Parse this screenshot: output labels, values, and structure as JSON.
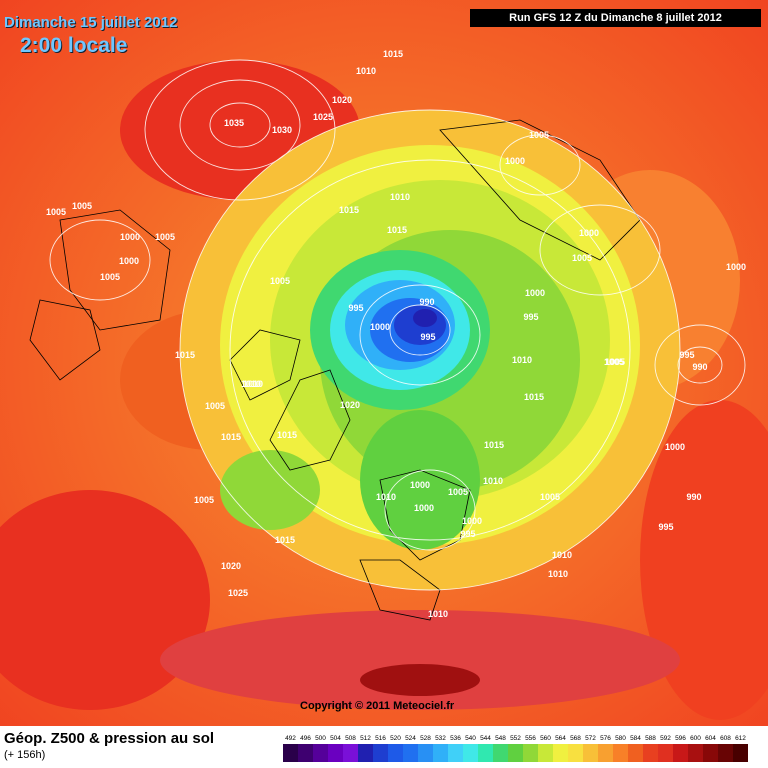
{
  "header": {
    "date": "Dimanche 15 juillet 2012",
    "time": "2:00 locale",
    "run": "Run GFS 12 Z du Dimanche 8 juillet 2012"
  },
  "footer": {
    "title": "Géop. Z500 & pression au sol",
    "lead_time": "(+ 156h)",
    "copyright": "Copyright © 2011 Meteociel.fr"
  },
  "scale": {
    "labels": [
      "492",
      "496",
      "500",
      "504",
      "508",
      "512",
      "516",
      "520",
      "524",
      "528",
      "532",
      "536",
      "540",
      "544",
      "548",
      "552",
      "556",
      "560",
      "564",
      "568",
      "572",
      "576",
      "580",
      "584",
      "588",
      "592",
      "596",
      "600",
      "604",
      "608",
      "612"
    ],
    "colors": [
      "#2a004a",
      "#3e0070",
      "#55009a",
      "#6a00c0",
      "#7a10d8",
      "#2020b0",
      "#1e3ed0",
      "#1e5ae8",
      "#2070f0",
      "#2890f4",
      "#30b0f8",
      "#40d0f8",
      "#40e8e8",
      "#30e8b0",
      "#40d870",
      "#60d040",
      "#90d838",
      "#c8e838",
      "#f0f040",
      "#f8e040",
      "#f8c038",
      "#f8a030",
      "#f88028",
      "#f06020",
      "#e84020",
      "#e03020",
      "#c81818",
      "#a81010",
      "#880808",
      "#680404",
      "#480000"
    ]
  },
  "isobars": [
    {
      "text": "1015"
    },
    {
      "text": "1010"
    },
    {
      "text": "1020"
    },
    {
      "text": "1035"
    },
    {
      "text": "1030"
    },
    {
      "text": "1025"
    },
    {
      "text": "1005"
    },
    {
      "text": "1000"
    },
    {
      "text": "1005"
    },
    {
      "text": "1005"
    },
    {
      "text": "1000"
    },
    {
      "text": "1005"
    },
    {
      "text": "1010"
    },
    {
      "text": "1015"
    },
    {
      "text": "1015"
    },
    {
      "text": "1005"
    },
    {
      "text": "1000"
    },
    {
      "text": "1000"
    },
    {
      "text": "1005"
    },
    {
      "text": "1000"
    },
    {
      "text": "990"
    },
    {
      "text": "995"
    },
    {
      "text": "1000"
    },
    {
      "text": "995"
    },
    {
      "text": "995"
    },
    {
      "text": "1010"
    },
    {
      "text": "1015"
    },
    {
      "text": "995"
    },
    {
      "text": "990"
    },
    {
      "text": "1005"
    },
    {
      "text": "1015"
    },
    {
      "text": "1010"
    },
    {
      "text": "1005"
    },
    {
      "text": "1015"
    },
    {
      "text": "1015"
    },
    {
      "text": "1020"
    },
    {
      "text": "1000"
    },
    {
      "text": "1005"
    },
    {
      "text": "1010"
    },
    {
      "text": "1010"
    },
    {
      "text": "1000"
    },
    {
      "text": "1000"
    },
    {
      "text": "995"
    },
    {
      "text": "1005"
    },
    {
      "text": "1005"
    },
    {
      "text": "990"
    },
    {
      "text": "995"
    },
    {
      "text": "1015"
    },
    {
      "text": "1020"
    },
    {
      "text": "1025"
    },
    {
      "text": "1010"
    },
    {
      "text": "1010"
    },
    {
      "text": "1010"
    },
    {
      "text": "1000"
    },
    {
      "text": "1005"
    },
    {
      "text": "1010"
    },
    {
      "text": "1015"
    },
    {
      "text": "1005"
    },
    {
      "text": "1000"
    }
  ]
}
